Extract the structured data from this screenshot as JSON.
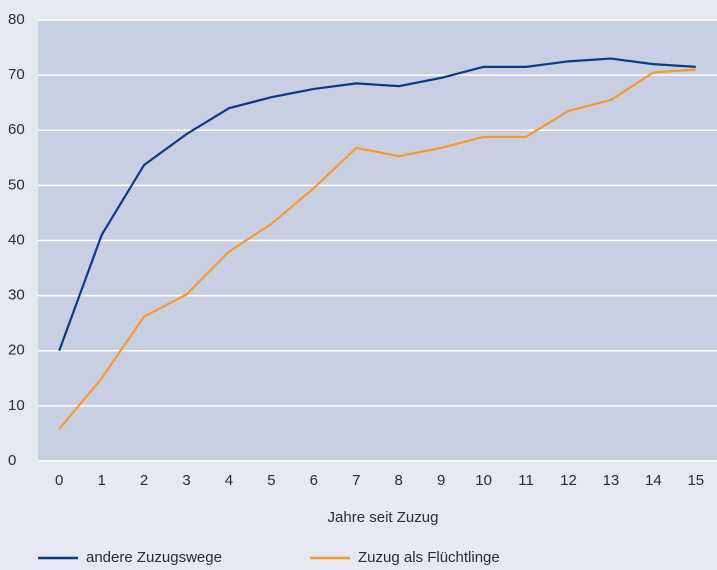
{
  "chart_data": {
    "type": "line",
    "x_label": "Jahre seit Zuzug",
    "categories": [
      "0",
      "1",
      "2",
      "3",
      "4",
      "5",
      "6",
      "7",
      "8",
      "9",
      "10",
      "11",
      "12",
      "13",
      "14",
      "15"
    ],
    "series": [
      {
        "name": "andere Zuzugswege",
        "color": "#0b3b84",
        "values": [
          20,
          41,
          53.7,
          59.3,
          64,
          66,
          67.5,
          68.5,
          68,
          69.5,
          71.5,
          71.5,
          72.5,
          73,
          72,
          71.5
        ]
      },
      {
        "name": "Zuzug als Flüchtlinge",
        "color": "#f39a2e",
        "values": [
          5.8,
          15,
          26.2,
          30.2,
          38,
          43,
          49.5,
          56.8,
          55.3,
          56.8,
          58.8,
          58.8,
          63.5,
          65.5,
          70.5,
          71
        ]
      }
    ],
    "ylim": [
      0,
      80
    ],
    "yticks": [
      0,
      10,
      20,
      30,
      40,
      50,
      60,
      70,
      80
    ],
    "grid": true
  }
}
